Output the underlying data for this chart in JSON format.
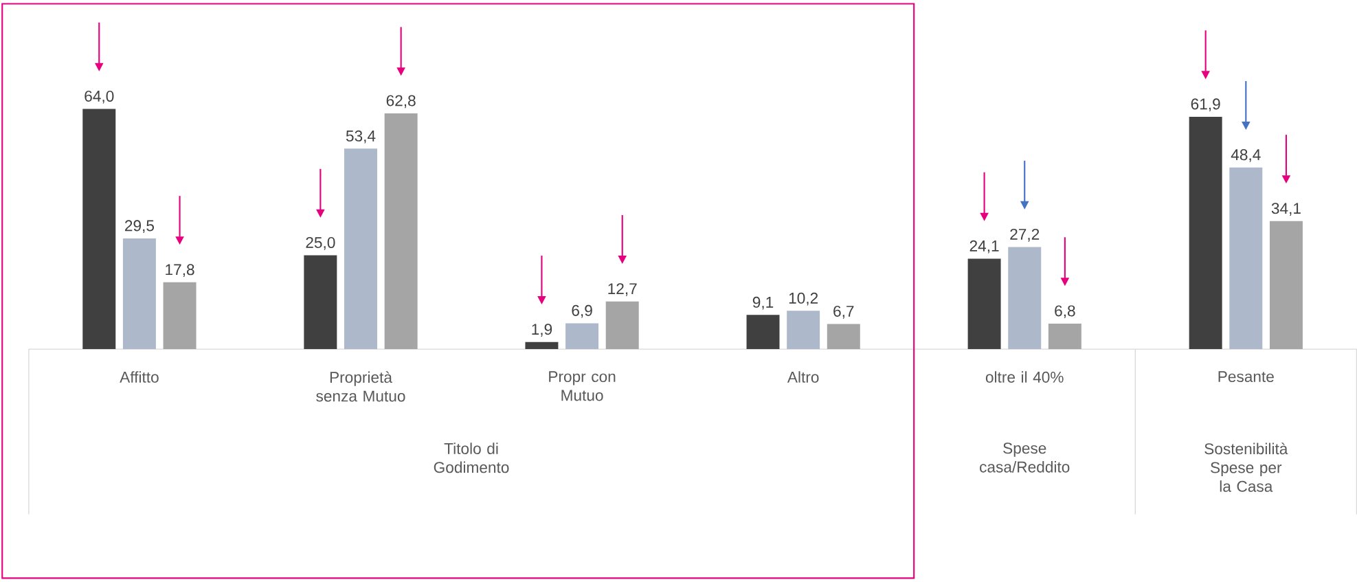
{
  "chart_data": {
    "type": "bar",
    "categories": [
      "Affitto",
      "Proprietà senza Mutuo",
      "Propr con Mutuo",
      "Altro",
      "oltre il 40%",
      "Pesante"
    ],
    "series": [
      {
        "color": "#404040",
        "values": [
          64.0,
          25.0,
          1.9,
          9.1,
          24.1,
          61.9
        ],
        "value_labels": [
          "64,0",
          "25,0",
          "1,9",
          "9,1",
          "24,1",
          "61,9"
        ]
      },
      {
        "color": "#adb9ca",
        "values": [
          29.5,
          53.4,
          6.9,
          10.2,
          27.2,
          48.4
        ],
        "value_labels": [
          "29,5",
          "53,4",
          "6,9",
          "10,2",
          "27,2",
          "48,4"
        ]
      },
      {
        "color": "#a5a5a5",
        "values": [
          17.8,
          62.8,
          12.7,
          6.7,
          6.8,
          34.1
        ],
        "value_labels": [
          "17,8",
          "62,8",
          "12,7",
          "6,7",
          "6,8",
          "34,1"
        ]
      }
    ],
    "tick_labels": "x",
    "annotations": [
      "Titolo di Godimento",
      "Spese casa/Reddito",
      "Sostenibilità Spese per la Casa"
    ]
  }
}
